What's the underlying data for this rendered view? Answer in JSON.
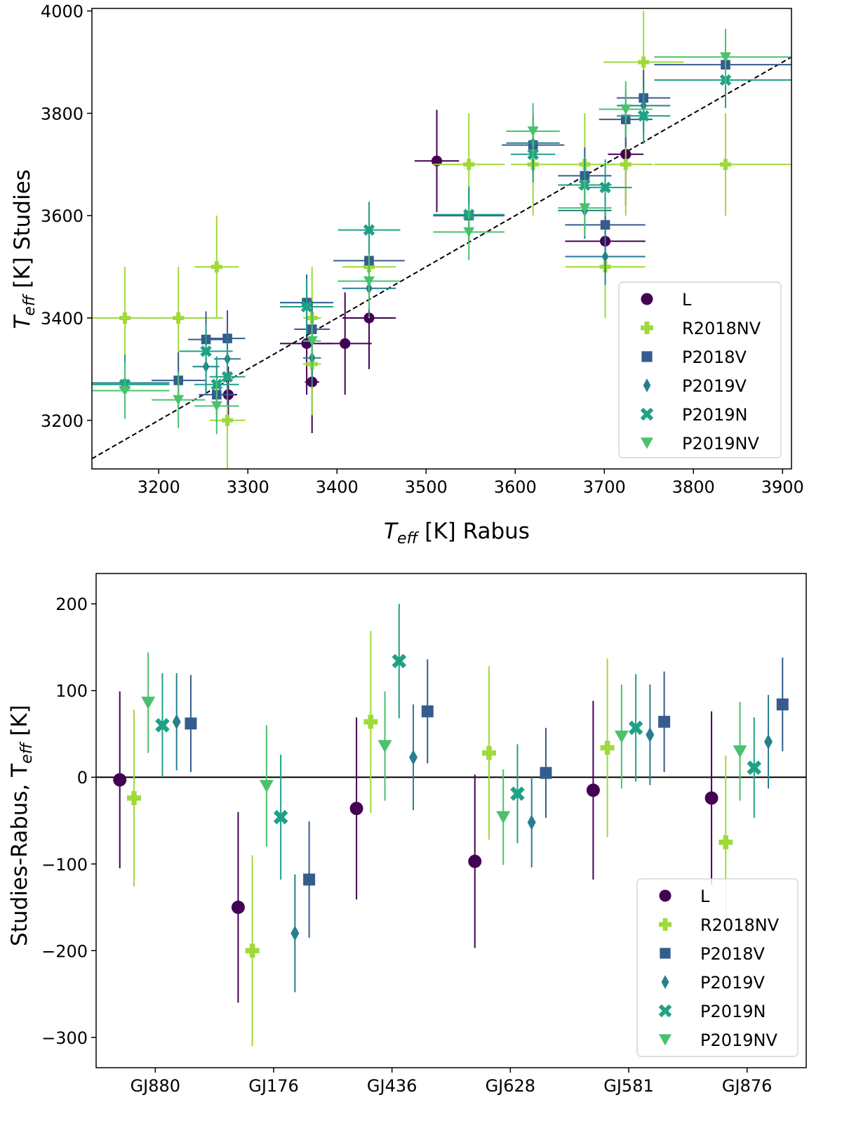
{
  "colors": {
    "L": "#440154",
    "R2018NV": "#9fda3a",
    "P2018V": "#365c8d",
    "P2019V": "#277f8e",
    "P2019N": "#1fa187",
    "P2019NV": "#4ac16d",
    "axis": "#000000",
    "background": "#ffffff"
  },
  "chart_data": [
    {
      "type": "scatter",
      "title": "",
      "xlabel_main": "T",
      "xlabel_sub": "eff",
      "xlabel_rest": " [K] Rabus",
      "ylabel_main": "T",
      "ylabel_sub": "eff",
      "ylabel_rest": " [K] Studies",
      "xlim": [
        3125,
        3910
      ],
      "ylim": [
        3105,
        4005
      ],
      "xticks": [
        3200,
        3300,
        3400,
        3500,
        3600,
        3700,
        3800,
        3900
      ],
      "yticks": [
        3200,
        3400,
        3600,
        3800,
        4000
      ],
      "reference_line": "y = x (dashed)",
      "legend": [
        "L",
        "R2018NV",
        "P2018V",
        "P2019V",
        "P2019N",
        "P2019NV"
      ],
      "legend_position": "lower-right",
      "series": [
        {
          "name": "L",
          "marker": "circle",
          "points": [
            {
              "x": 3278,
              "y": 3250,
              "xerr": 10,
              "yerr": 55
            },
            {
              "x": 3366,
              "y": 3350,
              "xerr": 30,
              "yerr": 100
            },
            {
              "x": 3372,
              "y": 3275,
              "xerr": 8,
              "yerr": 100
            },
            {
              "x": 3409,
              "y": 3350,
              "xerr": 30,
              "yerr": 100
            },
            {
              "x": 3436,
              "y": 3400,
              "xerr": 30,
              "yerr": 100
            },
            {
              "x": 3512,
              "y": 3707,
              "xerr": 25,
              "yerr": 100
            },
            {
              "x": 3701,
              "y": 3550,
              "xerr": 45,
              "yerr": 50
            },
            {
              "x": 3724,
              "y": 3720,
              "xerr": 20,
              "yerr": 100
            }
          ]
        },
        {
          "name": "R2018NV",
          "marker": "plus",
          "points": [
            {
              "x": 3162,
              "y": 3400,
              "xerr": 55,
              "yerr": 100
            },
            {
              "x": 3222,
              "y": 3400,
              "xerr": 50,
              "yerr": 100
            },
            {
              "x": 3265,
              "y": 3500,
              "xerr": 25,
              "yerr": 100
            },
            {
              "x": 3277,
              "y": 3200,
              "xerr": 20,
              "yerr": 100
            },
            {
              "x": 3372,
              "y": 3400,
              "xerr": 10,
              "yerr": 100
            },
            {
              "x": 3372,
              "y": 3310,
              "xerr": 10,
              "yerr": 100
            },
            {
              "x": 3436,
              "y": 3500,
              "xerr": 30,
              "yerr": 100
            },
            {
              "x": 3548,
              "y": 3700,
              "xerr": 40,
              "yerr": 100
            },
            {
              "x": 3620,
              "y": 3700,
              "xerr": 25,
              "yerr": 100
            },
            {
              "x": 3678,
              "y": 3700,
              "xerr": 35,
              "yerr": 100
            },
            {
              "x": 3701,
              "y": 3500,
              "xerr": 45,
              "yerr": 100
            },
            {
              "x": 3724,
              "y": 3700,
              "xerr": 30,
              "yerr": 100
            },
            {
              "x": 3744,
              "y": 3900,
              "xerr": 45,
              "yerr": 100
            },
            {
              "x": 3836,
              "y": 3700,
              "xerr": 80,
              "yerr": 100
            }
          ]
        },
        {
          "name": "P2018V",
          "marker": "square",
          "points": [
            {
              "x": 3222,
              "y": 3278,
              "xerr": 30,
              "yerr": 55
            },
            {
              "x": 3253,
              "y": 3358,
              "xerr": 20,
              "yerr": 55
            },
            {
              "x": 3265,
              "y": 3250,
              "xerr": 20,
              "yerr": 55
            },
            {
              "x": 3277,
              "y": 3360,
              "xerr": 20,
              "yerr": 55
            },
            {
              "x": 3366,
              "y": 3430,
              "xerr": 30,
              "yerr": 55
            },
            {
              "x": 3372,
              "y": 3378,
              "xerr": 20,
              "yerr": 55
            },
            {
              "x": 3436,
              "y": 3512,
              "xerr": 40,
              "yerr": 55
            },
            {
              "x": 3548,
              "y": 3600,
              "xerr": 40,
              "yerr": 55
            },
            {
              "x": 3620,
              "y": 3738,
              "xerr": 35,
              "yerr": 55
            },
            {
              "x": 3678,
              "y": 3678,
              "xerr": 30,
              "yerr": 55
            },
            {
              "x": 3701,
              "y": 3582,
              "xerr": 45,
              "yerr": 55
            },
            {
              "x": 3724,
              "y": 3788,
              "xerr": 30,
              "yerr": 55
            },
            {
              "x": 3744,
              "y": 3830,
              "xerr": 30,
              "yerr": 55
            },
            {
              "x": 3836,
              "y": 3895,
              "xerr": 80,
              "yerr": 55
            }
          ]
        },
        {
          "name": "P2019V",
          "marker": "diamond",
          "points": [
            {
              "x": 3162,
              "y": 3273,
              "xerr": 50,
              "yerr": 55
            },
            {
              "x": 3253,
              "y": 3305,
              "xerr": 15,
              "yerr": 55
            },
            {
              "x": 3277,
              "y": 3320,
              "xerr": 15,
              "yerr": 55
            },
            {
              "x": 3372,
              "y": 3322,
              "xerr": 10,
              "yerr": 55
            },
            {
              "x": 3436,
              "y": 3458,
              "xerr": 30,
              "yerr": 55
            },
            {
              "x": 3620,
              "y": 3742,
              "xerr": 30,
              "yerr": 55
            },
            {
              "x": 3678,
              "y": 3610,
              "xerr": 30,
              "yerr": 55
            },
            {
              "x": 3701,
              "y": 3520,
              "xerr": 45,
              "yerr": 55
            },
            {
              "x": 3744,
              "y": 3815,
              "xerr": 30,
              "yerr": 55
            }
          ]
        },
        {
          "name": "P2019N",
          "marker": "x",
          "points": [
            {
              "x": 3162,
              "y": 3270,
              "xerr": 50,
              "yerr": 55
            },
            {
              "x": 3253,
              "y": 3335,
              "xerr": 30,
              "yerr": 55
            },
            {
              "x": 3265,
              "y": 3270,
              "xerr": 25,
              "yerr": 55
            },
            {
              "x": 3277,
              "y": 3285,
              "xerr": 20,
              "yerr": 55
            },
            {
              "x": 3366,
              "y": 3422,
              "xerr": 30,
              "yerr": 55
            },
            {
              "x": 3436,
              "y": 3572,
              "xerr": 35,
              "yerr": 55
            },
            {
              "x": 3548,
              "y": 3602,
              "xerr": 40,
              "yerr": 55
            },
            {
              "x": 3620,
              "y": 3720,
              "xerr": 25,
              "yerr": 55
            },
            {
              "x": 3678,
              "y": 3660,
              "xerr": 30,
              "yerr": 55
            },
            {
              "x": 3701,
              "y": 3655,
              "xerr": 30,
              "yerr": 55
            },
            {
              "x": 3744,
              "y": 3795,
              "xerr": 30,
              "yerr": 55
            },
            {
              "x": 3836,
              "y": 3865,
              "xerr": 80,
              "yerr": 55
            }
          ]
        },
        {
          "name": "P2019NV",
          "marker": "triangle-down",
          "points": [
            {
              "x": 3162,
              "y": 3258,
              "xerr": 50,
              "yerr": 55
            },
            {
              "x": 3222,
              "y": 3240,
              "xerr": 30,
              "yerr": 55
            },
            {
              "x": 3265,
              "y": 3228,
              "xerr": 25,
              "yerr": 55
            },
            {
              "x": 3372,
              "y": 3355,
              "xerr": 10,
              "yerr": 55
            },
            {
              "x": 3436,
              "y": 3472,
              "xerr": 35,
              "yerr": 55
            },
            {
              "x": 3548,
              "y": 3568,
              "xerr": 40,
              "yerr": 55
            },
            {
              "x": 3620,
              "y": 3765,
              "xerr": 30,
              "yerr": 55
            },
            {
              "x": 3678,
              "y": 3615,
              "xerr": 30,
              "yerr": 55
            },
            {
              "x": 3724,
              "y": 3808,
              "xerr": 30,
              "yerr": 55
            },
            {
              "x": 3836,
              "y": 3910,
              "xerr": 80,
              "yerr": 55
            }
          ]
        }
      ]
    },
    {
      "type": "scatter",
      "title": "",
      "xlabel": "",
      "ylabel_main": "Studies-Rabus, T",
      "ylabel_sub": "eff",
      "ylabel_rest": " [K]",
      "categories": [
        "GJ880",
        "GJ176",
        "GJ436",
        "GJ628",
        "GJ581",
        "GJ876"
      ],
      "ylim": [
        -335,
        235
      ],
      "yticks": [
        200,
        100,
        0,
        -100,
        -200,
        -300
      ],
      "ytick_labels": [
        "200",
        "100",
        "0",
        "−100",
        "−200",
        "−300"
      ],
      "zero_line": true,
      "legend": [
        "L",
        "R2018NV",
        "P2018V",
        "P2019V",
        "P2019N",
        "P2019NV"
      ],
      "legend_position": "lower-right",
      "series": [
        {
          "name": "L",
          "marker": "circle",
          "offset": -0.3,
          "values": [
            -3,
            -150,
            -36,
            -97,
            -15,
            -24
          ],
          "errors": [
            102,
            110,
            105,
            100,
            103,
            100
          ]
        },
        {
          "name": "R2018NV",
          "marker": "plus",
          "offset": -0.18,
          "values": [
            -24,
            -200,
            64,
            28,
            34,
            -75
          ],
          "errors": [
            102,
            110,
            105,
            100,
            103,
            100
          ]
        },
        {
          "name": "P2019NV",
          "marker": "triangle-down",
          "offset": -0.06,
          "values": [
            86,
            -10,
            36,
            -46,
            47,
            30
          ],
          "errors": [
            58,
            70,
            63,
            55,
            60,
            57
          ]
        },
        {
          "name": "P2019N",
          "marker": "x",
          "offset": 0.06,
          "values": [
            60,
            -46,
            134,
            -19,
            57,
            11
          ],
          "errors": [
            60,
            72,
            66,
            57,
            62,
            58
          ]
        },
        {
          "name": "P2019V",
          "marker": "diamond",
          "offset": 0.18,
          "values": [
            64,
            -180,
            23,
            -52,
            49,
            41
          ],
          "errors": [
            56,
            68,
            61,
            52,
            58,
            54
          ]
        },
        {
          "name": "P2018V",
          "marker": "square",
          "offset": 0.3,
          "values": [
            62,
            -118,
            76,
            5,
            64,
            84
          ],
          "errors": [
            56,
            67,
            60,
            52,
            58,
            54
          ]
        }
      ]
    }
  ]
}
